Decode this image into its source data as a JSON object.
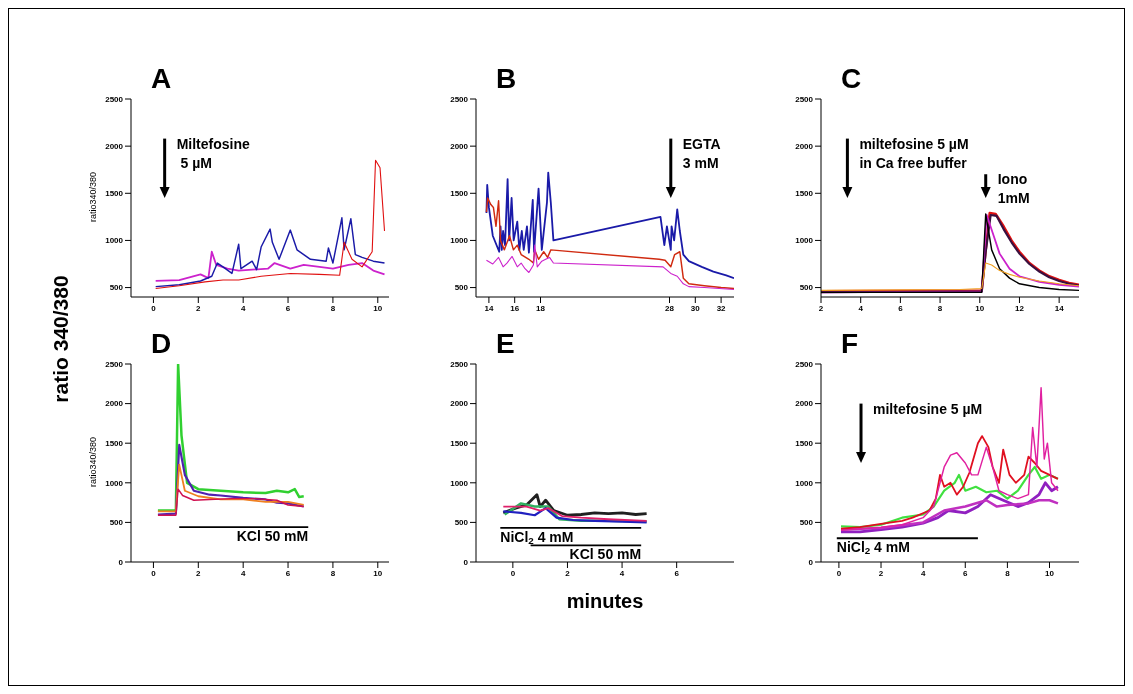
{
  "chart_data": [
    {
      "type": "line",
      "title": "A",
      "ylabel": "ratio340/380",
      "xlim": [
        -1,
        10.5
      ],
      "xticks": [
        0,
        2,
        4,
        6,
        8,
        10
      ],
      "ylim": [
        400,
        2500
      ],
      "yticks": [
        500,
        1000,
        1500,
        2000,
        2500
      ],
      "marker": "none",
      "annotations": [
        "ratio 340/380"
      ],
      "ref_lines": [
        {
          "axis": "x",
          "value": 0.5,
          "label": "Miltefosine\n 5 µM",
          "color": "#000000"
        }
      ],
      "series": [
        {
          "color": "#cc22cc",
          "x": [
            0.1,
            1.15,
            2.1,
            2.45,
            2.6,
            2.8,
            3.3,
            3.8,
            4.4,
            5.1,
            5.4,
            6.1,
            6.7,
            7.4,
            8.0,
            8.7,
            9.3,
            9.8,
            10.3
          ],
          "values": [
            570,
            580,
            640,
            600,
            880,
            740,
            700,
            680,
            690,
            700,
            760,
            700,
            740,
            720,
            700,
            740,
            760,
            680,
            640
          ]
        },
        {
          "color": "#1a1aa8",
          "x": [
            0.1,
            1.15,
            2.1,
            2.6,
            2.85,
            3.1,
            3.5,
            3.8,
            3.9,
            4.4,
            4.6,
            4.8,
            5.2,
            5.3,
            5.6,
            6.1,
            6.4,
            6.7,
            7.0,
            7.7,
            7.8,
            8.0,
            8.4,
            8.5,
            8.8,
            9.0,
            9.3,
            9.8,
            10.3
          ],
          "values": [
            510,
            530,
            570,
            620,
            760,
            720,
            650,
            960,
            700,
            780,
            690,
            930,
            1120,
            980,
            800,
            1110,
            900,
            850,
            800,
            780,
            920,
            760,
            1240,
            900,
            1230,
            850,
            820,
            780,
            760
          ]
        },
        {
          "color": "#e01010",
          "x": [
            0.1,
            1.15,
            2.3,
            3.1,
            3.8,
            4.8,
            6.1,
            7.4,
            8.3,
            8.5,
            8.85,
            9.3,
            9.75,
            9.9,
            10.1,
            10.3
          ],
          "values": [
            490,
            520,
            560,
            580,
            580,
            620,
            650,
            640,
            630,
            980,
            800,
            720,
            880,
            1850,
            1770,
            1100
          ]
        }
      ]
    },
    {
      "type": "line",
      "title": "B",
      "xlim": [
        13,
        33
      ],
      "xticks": [
        14,
        16,
        18,
        28,
        30,
        32
      ],
      "ylim": [
        400,
        2500
      ],
      "yticks": [
        500,
        1000,
        1500,
        2000,
        2500
      ],
      "marker": "none",
      "ref_lines": [
        {
          "axis": "x",
          "value": 28.1,
          "label": "EGTA\n3 mM",
          "color": "#000000"
        }
      ],
      "series": [
        {
          "color": "#1a1aa8",
          "x": [
            13.81,
            13.87,
            14.0,
            14.3,
            14.8,
            14.9,
            15.0,
            15.1,
            15.25,
            15.45,
            15.57,
            15.76,
            15.92,
            16.2,
            16.36,
            16.55,
            16.7,
            16.95,
            17.1,
            17.4,
            17.5,
            17.85,
            18.1,
            18.5,
            18.6,
            18.8,
            19.0,
            27.3,
            27.6,
            27.8,
            28.1,
            28.16,
            28.36,
            28.6,
            28.8,
            29.07,
            29.5,
            30.5,
            31.4,
            32.4,
            33.0
          ],
          "values": [
            1290,
            1590,
            1350,
            1050,
            880,
            1150,
            900,
            1100,
            950,
            1650,
            1000,
            1450,
            1000,
            1200,
            900,
            1100,
            900,
            1150,
            870,
            1430,
            880,
            1550,
            900,
            1400,
            1720,
            1400,
            1000,
            1250,
            950,
            1150,
            900,
            1150,
            1000,
            1330,
            1100,
            850,
            780,
            720,
            670,
            630,
            600
          ]
        },
        {
          "color": "#d02a10",
          "x": [
            13.81,
            13.9,
            14.15,
            14.35,
            14.55,
            14.75,
            14.9,
            15.2,
            15.6,
            15.9,
            16.2,
            16.5,
            17.1,
            17.45,
            17.55,
            17.85,
            18.25,
            18.55,
            18.8,
            27.2,
            27.66,
            28.1,
            28.4,
            28.8,
            29.07,
            29.5,
            30.7,
            32.0,
            33.0
          ],
          "values": [
            1300,
            1450,
            1380,
            1350,
            1150,
            1420,
            1000,
            900,
            1050,
            900,
            950,
            850,
            800,
            760,
            900,
            800,
            880,
            820,
            900,
            800,
            790,
            720,
            850,
            880,
            600,
            540,
            520,
            500,
            490
          ]
        },
        {
          "color": "#cc22cc",
          "x": [
            13.81,
            14.3,
            14.75,
            15.1,
            15.4,
            15.8,
            16.2,
            16.5,
            16.8,
            17.1,
            17.45,
            17.55,
            17.75,
            18.1,
            18.4,
            18.7,
            19.0,
            27.5,
            28.1,
            28.6,
            29.07,
            29.5,
            30.7,
            33.0
          ],
          "values": [
            790,
            750,
            820,
            720,
            760,
            830,
            720,
            760,
            700,
            660,
            740,
            950,
            720,
            780,
            800,
            820,
            760,
            720,
            650,
            620,
            540,
            510,
            500,
            480
          ]
        }
      ]
    },
    {
      "type": "line",
      "title": "C",
      "xlim": [
        2,
        15
      ],
      "xticks": [
        2,
        4,
        6,
        8,
        10,
        12,
        14
      ],
      "ylim": [
        400,
        2500
      ],
      "yticks": [
        500,
        1000,
        1500,
        2000,
        2500
      ],
      "marker": "none",
      "ref_lines": [
        {
          "axis": "x",
          "value": 3.33,
          "label": "miltefosine 5 µM\nin Ca free buffer",
          "color": "#000000"
        },
        {
          "axis": "x",
          "value": 10.3,
          "label": "Iono\n1mM",
          "color": "#000000"
        }
      ],
      "series": [
        {
          "color": "#e01010",
          "x": [
            2,
            10.1,
            10.3,
            10.5,
            10.8,
            11.2,
            11.6,
            12,
            12.5,
            13,
            13.5,
            14,
            14.5,
            15
          ],
          "values": [
            460,
            470,
            900,
            1290,
            1280,
            1150,
            1000,
            880,
            760,
            680,
            620,
            580,
            550,
            530
          ]
        },
        {
          "color": "#3a1040",
          "x": [
            2,
            10.1,
            10.3,
            10.55,
            10.85,
            11.2,
            11.6,
            12,
            12.5,
            13,
            13.5,
            14,
            14.5,
            15
          ],
          "values": [
            450,
            460,
            880,
            1270,
            1260,
            1120,
            980,
            860,
            750,
            670,
            610,
            570,
            540,
            520
          ]
        },
        {
          "color": "#cc22cc",
          "x": [
            2,
            10.1,
            10.35,
            10.7,
            11,
            11.5,
            12,
            13,
            14,
            15
          ],
          "values": [
            450,
            460,
            1270,
            1050,
            860,
            700,
            620,
            560,
            530,
            510
          ]
        },
        {
          "color": "#000000",
          "x": [
            2,
            10.1,
            10.3,
            10.6,
            11,
            11.5,
            12,
            13,
            14,
            15
          ],
          "values": [
            450,
            450,
            1280,
            900,
            700,
            600,
            540,
            500,
            480,
            470
          ]
        },
        {
          "color": "#f0a020",
          "x": [
            2,
            9,
            10.1,
            10.3,
            10.6,
            11,
            11.5,
            12,
            13,
            14,
            15
          ],
          "values": [
            470,
            480,
            490,
            760,
            740,
            680,
            640,
            610,
            570,
            540,
            520
          ]
        }
      ]
    },
    {
      "type": "line",
      "title": "D",
      "ylabel": "ratio340/380",
      "xlim": [
        -1,
        10.5
      ],
      "xticks": [
        0,
        2,
        4,
        6,
        8,
        10
      ],
      "ylim": [
        0,
        2500
      ],
      "yticks": [
        0,
        500,
        1000,
        1500,
        2000,
        2500
      ],
      "marker": "none",
      "series": [
        {
          "color": "#30d030",
          "x": [
            0.2,
            1.0,
            1.1,
            1.25,
            1.5,
            2,
            3,
            4,
            5,
            5.5,
            6,
            6.3,
            6.5,
            6.7
          ],
          "values": [
            650,
            650,
            2500,
            1600,
            1000,
            920,
            900,
            880,
            870,
            900,
            880,
            920,
            820,
            830
          ]
        },
        {
          "color": "#5020b0",
          "x": [
            0.2,
            1.0,
            1.15,
            1.4,
            1.8,
            2.5,
            3,
            4,
            5,
            5.5,
            6,
            6.7
          ],
          "values": [
            600,
            610,
            1480,
            1100,
            900,
            850,
            840,
            810,
            790,
            750,
            740,
            700
          ]
        },
        {
          "color": "#f08020",
          "x": [
            0.2,
            1.0,
            1.15,
            1.4,
            2,
            3,
            4,
            5,
            6,
            6.7
          ],
          "values": [
            640,
            640,
            1230,
            900,
            830,
            790,
            790,
            760,
            760,
            720
          ]
        },
        {
          "color": "#d01050",
          "x": [
            0.2,
            1.0,
            1.1,
            1.3,
            1.8,
            2.5,
            3.5,
            4.5,
            5.5,
            6,
            6.7
          ],
          "values": [
            590,
            590,
            920,
            840,
            780,
            790,
            800,
            800,
            780,
            720,
            700
          ]
        },
        {
          "name": "KCl 50 mM",
          "color": "#000000",
          "x": [
            1.15,
            6.9
          ],
          "values": [
            440,
            440
          ]
        }
      ]
    },
    {
      "type": "line",
      "title": "E",
      "xlabel": "minutes",
      "xlim": [
        -1.35,
        8.1
      ],
      "xticks": [
        0,
        2,
        4,
        6
      ],
      "ylim": [
        0,
        2500
      ],
      "yticks": [
        0,
        500,
        1000,
        1500,
        2000,
        2500
      ],
      "marker": "none",
      "series": [
        {
          "color": "#202020",
          "x": [
            -0.35,
            0.1,
            0.5,
            0.88,
            1.0,
            1.2,
            1.5,
            2.0,
            2.5,
            3,
            3.5,
            4,
            4.5,
            4.9
          ],
          "values": [
            620,
            680,
            720,
            850,
            700,
            780,
            650,
            590,
            600,
            620,
            610,
            620,
            600,
            610
          ]
        },
        {
          "color": "#30b060",
          "x": [
            -0.3,
            0.3,
            0.8,
            1.3,
            1.7,
            2.5,
            3.5,
            4.9
          ],
          "values": [
            600,
            740,
            700,
            700,
            540,
            520,
            520,
            510
          ]
        },
        {
          "color": "#2020c0",
          "x": [
            -0.35,
            0.3,
            0.8,
            1.2,
            1.6,
            2.2,
            3,
            4,
            4.9
          ],
          "values": [
            640,
            620,
            590,
            680,
            560,
            530,
            520,
            510,
            500
          ]
        },
        {
          "color": "#e0206a",
          "x": [
            -0.35,
            0.5,
            1.0,
            1.3,
            1.8,
            2.5,
            3.5,
            4.9
          ],
          "values": [
            700,
            700,
            650,
            680,
            580,
            560,
            540,
            520
          ]
        },
        {
          "name": "NiCl$_{2}$ 4 mM",
          "color": "#000000",
          "x": [
            -0.46,
            4.7
          ],
          "values": [
            430,
            430
          ]
        },
        {
          "name": "KCl 50 mM",
          "color": "#000000",
          "x": [
            0.65,
            4.7
          ],
          "values": [
            210,
            210
          ]
        }
      ]
    },
    {
      "type": "line",
      "title": "F",
      "xlim": [
        -0.85,
        11.4
      ],
      "xticks": [
        0,
        2,
        4,
        6,
        8,
        10
      ],
      "ylim": [
        0,
        2500
      ],
      "yticks": [
        0,
        500,
        1000,
        1500,
        2000,
        2500
      ],
      "marker": "none",
      "ref_lines": [
        {
          "axis": "x",
          "value": 1.05,
          "label": "miltefosine 5 µM",
          "color": "#000000"
        }
      ],
      "series": [
        {
          "color": "#9020c0",
          "x": [
            0.1,
            1,
            2,
            3,
            4,
            4.7,
            5.2,
            6.0,
            6.6,
            7.2,
            7.8,
            8.5,
            9.0,
            9.5,
            9.8,
            10.1,
            10.4
          ],
          "values": [
            380,
            380,
            410,
            440,
            490,
            560,
            650,
            620,
            700,
            850,
            780,
            700,
            750,
            850,
            1000,
            900,
            950
          ]
        },
        {
          "color": "#c030c0",
          "x": [
            0.1,
            2,
            4,
            5,
            6,
            7,
            7.5,
            8,
            9,
            9.5,
            10,
            10.4
          ],
          "values": [
            410,
            430,
            500,
            650,
            700,
            780,
            700,
            720,
            740,
            780,
            780,
            740
          ]
        },
        {
          "color": "#40e040",
          "x": [
            0.1,
            1,
            2,
            3,
            4,
            4.5,
            5,
            5.5,
            5.7,
            6,
            6.5,
            7,
            7.5,
            8,
            8.5,
            9.0,
            9.3,
            9.6,
            10,
            10.4
          ],
          "values": [
            450,
            440,
            470,
            560,
            600,
            700,
            900,
            1000,
            1100,
            900,
            950,
            880,
            900,
            800,
            900,
            1100,
            1200,
            1050,
            1100,
            1050
          ]
        },
        {
          "color": "#e01020",
          "x": [
            0.1,
            1,
            2,
            3,
            3.5,
            4.3,
            4.6,
            4.8,
            5.0,
            5.3,
            5.6,
            5.9,
            6.2,
            6.6,
            6.8,
            7.1,
            7.3,
            7.6,
            7.8,
            8.1,
            8.4,
            8.8,
            9.0,
            9.3,
            9.6,
            10.0,
            10.4
          ],
          "values": [
            420,
            440,
            480,
            520,
            560,
            650,
            800,
            1100,
            950,
            1000,
            850,
            950,
            1130,
            1500,
            1590,
            1450,
            1200,
            1000,
            1420,
            1100,
            1000,
            1100,
            1330,
            1250,
            1150,
            1100,
            1050
          ]
        },
        {
          "color": "#e020a0",
          "x": [
            0.1,
            1,
            2,
            3,
            4,
            4.5,
            4.7,
            5.0,
            5.3,
            5.6,
            6.0,
            6.3,
            6.6,
            7.0,
            7.3,
            7.6,
            8,
            8.5,
            9.0,
            9.2,
            9.4,
            9.6,
            9.75,
            9.9,
            10.1,
            10.4
          ],
          "values": [
            400,
            420,
            440,
            470,
            560,
            700,
            900,
            1200,
            1350,
            1380,
            1250,
            1100,
            1100,
            1450,
            1200,
            900,
            850,
            800,
            850,
            1700,
            1200,
            2200,
            1300,
            1500,
            1000,
            900
          ]
        },
        {
          "name": "NiCl$_{2}$ 4 mM",
          "color": "#000000",
          "x": [
            -0.1,
            6.6
          ],
          "values": [
            300,
            300
          ]
        }
      ]
    }
  ]
}
